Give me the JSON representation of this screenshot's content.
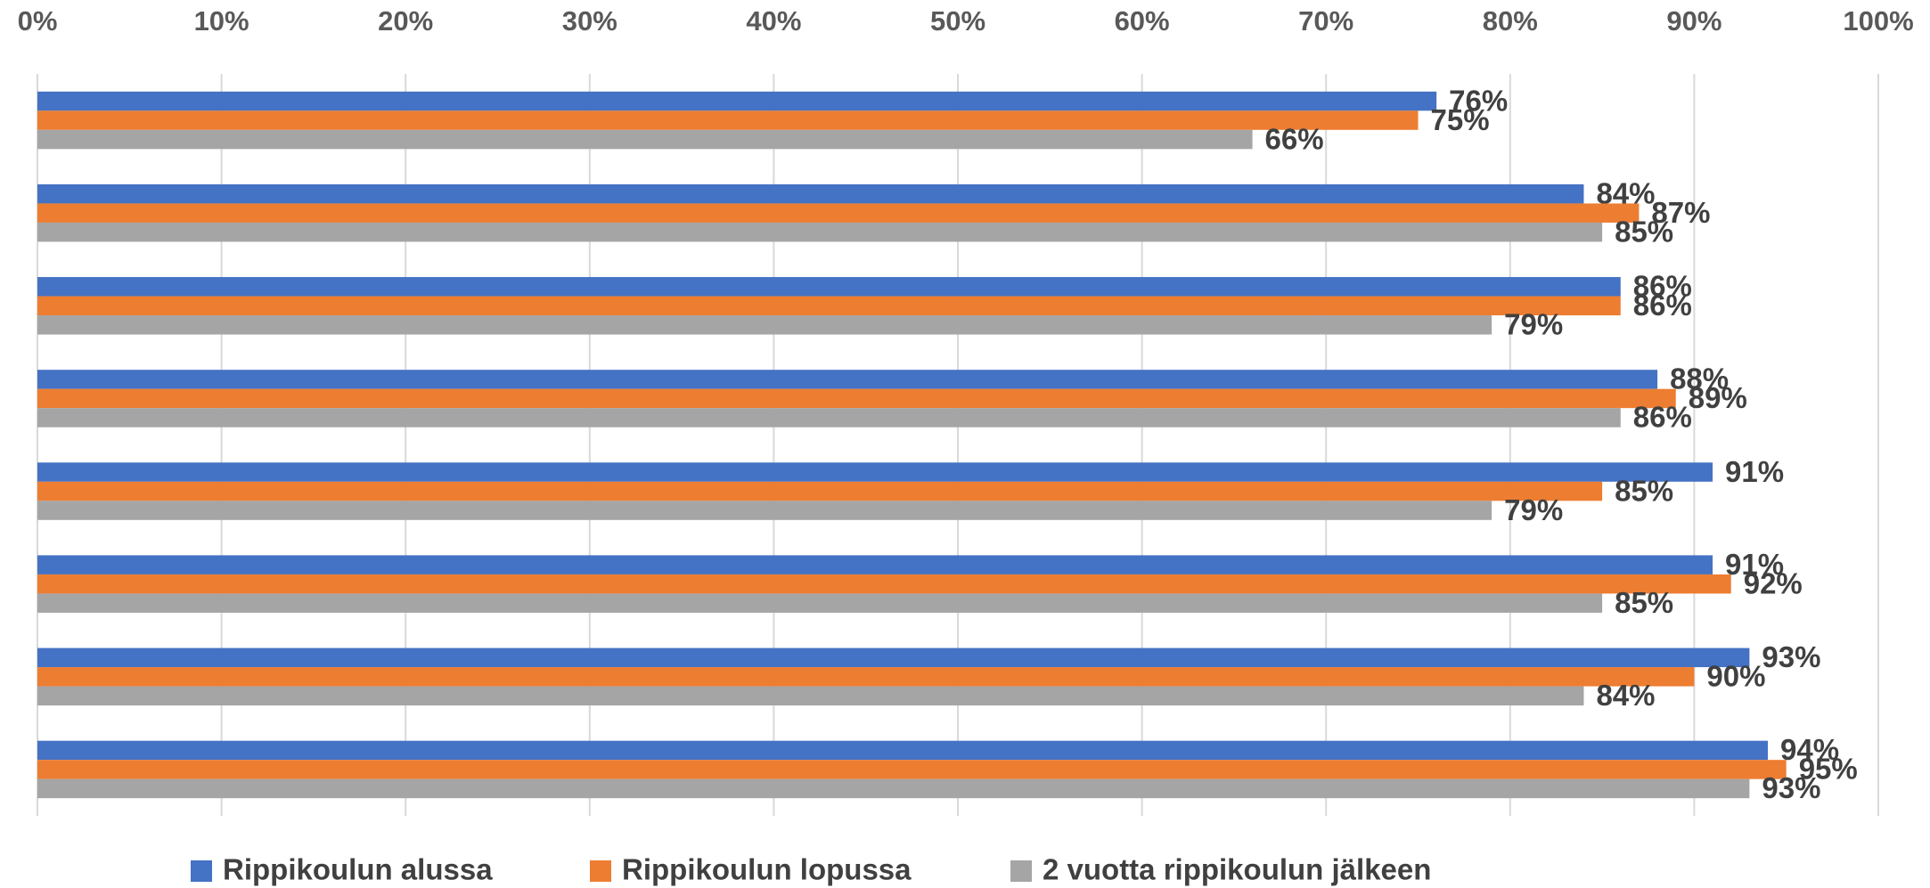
{
  "chart_data": {
    "type": "hbar",
    "categories": [
      null,
      null,
      null,
      null,
      null,
      null,
      null,
      null
    ],
    "series": [
      {
        "name": "Rippikoulun alussa",
        "color": "#4472c4",
        "values": [
          76,
          84,
          86,
          88,
          91,
          91,
          93,
          94
        ],
        "value_labels": [
          "76%",
          "84%",
          "86%",
          "88%",
          "91%",
          "91%",
          "93%",
          "94%"
        ]
      },
      {
        "name": "Rippikoulun lopussa",
        "color": "#ed7d31",
        "values": [
          75,
          87,
          86,
          89,
          85,
          92,
          90,
          95
        ],
        "value_labels": [
          "75%",
          "87%",
          "86%",
          "89%",
          "85%",
          "92%",
          "90%",
          "95%"
        ]
      },
      {
        "name": "2 vuotta rippikoulun jälkeen",
        "color": "#a5a5a5",
        "values": [
          66,
          85,
          79,
          86,
          79,
          85,
          84,
          93
        ],
        "value_labels": [
          "66%",
          "85%",
          "79%",
          "86%",
          "79%",
          "85%",
          "84%",
          "93%"
        ]
      }
    ],
    "xlim": [
      0,
      100
    ],
    "xticks": [
      {
        "value": 0,
        "label": "0%"
      },
      {
        "value": 10,
        "label": "10%"
      },
      {
        "value": 20,
        "label": "20%"
      },
      {
        "value": 30,
        "label": "30%"
      },
      {
        "value": 40,
        "label": "40%"
      },
      {
        "value": 50,
        "label": "50%"
      },
      {
        "value": 60,
        "label": "60%"
      },
      {
        "value": 70,
        "label": "70%"
      },
      {
        "value": 80,
        "label": "80%"
      },
      {
        "value": 90,
        "label": "90%"
      },
      {
        "value": 100,
        "label": "100%"
      }
    ],
    "grid": true,
    "legend": "bottom"
  }
}
